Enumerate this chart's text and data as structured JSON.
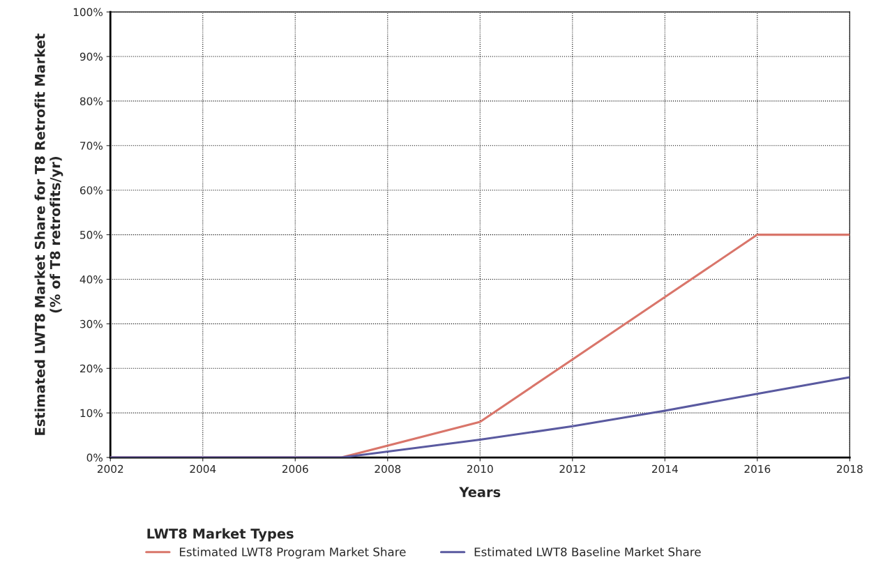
{
  "chart_data": {
    "type": "line",
    "xlabel": "Years",
    "ylabel": "Estimated LWT8 Market Share for T8 Retrofit Market\n(% of T8 retrofits/yr)",
    "legend_title": "LWT8 Market Types",
    "legend": "bottom",
    "grid": true,
    "line_style": "solid",
    "x": [
      2002,
      2007,
      2010,
      2012,
      2014,
      2016,
      2018
    ],
    "series": [
      {
        "name": "Estimated LWT8 Program Market Share",
        "color": "#d9756a",
        "values": [
          0,
          0,
          8,
          22,
          36,
          50,
          50
        ]
      },
      {
        "name": "Estimated LWT8 Baseline Market Share",
        "color": "#5a5aa0",
        "values": [
          0,
          0,
          4,
          7,
          10.5,
          14.3,
          18
        ]
      }
    ],
    "xlim": [
      2002,
      2018
    ],
    "xticks": [
      2002,
      2004,
      2006,
      2008,
      2010,
      2012,
      2014,
      2016,
      2018
    ],
    "ylim": [
      0,
      100
    ],
    "yticks": [
      {
        "value": 0,
        "label": "0%"
      },
      {
        "value": 10,
        "label": "10%"
      },
      {
        "value": 20,
        "label": "20%"
      },
      {
        "value": 30,
        "label": "30%"
      },
      {
        "value": 40,
        "label": "40%"
      },
      {
        "value": 50,
        "label": "50%"
      },
      {
        "value": 60,
        "label": "60%"
      },
      {
        "value": 70,
        "label": "70%"
      },
      {
        "value": 80,
        "label": "80%"
      },
      {
        "value": 90,
        "label": "90%"
      },
      {
        "value": 100,
        "label": "100%"
      }
    ]
  }
}
